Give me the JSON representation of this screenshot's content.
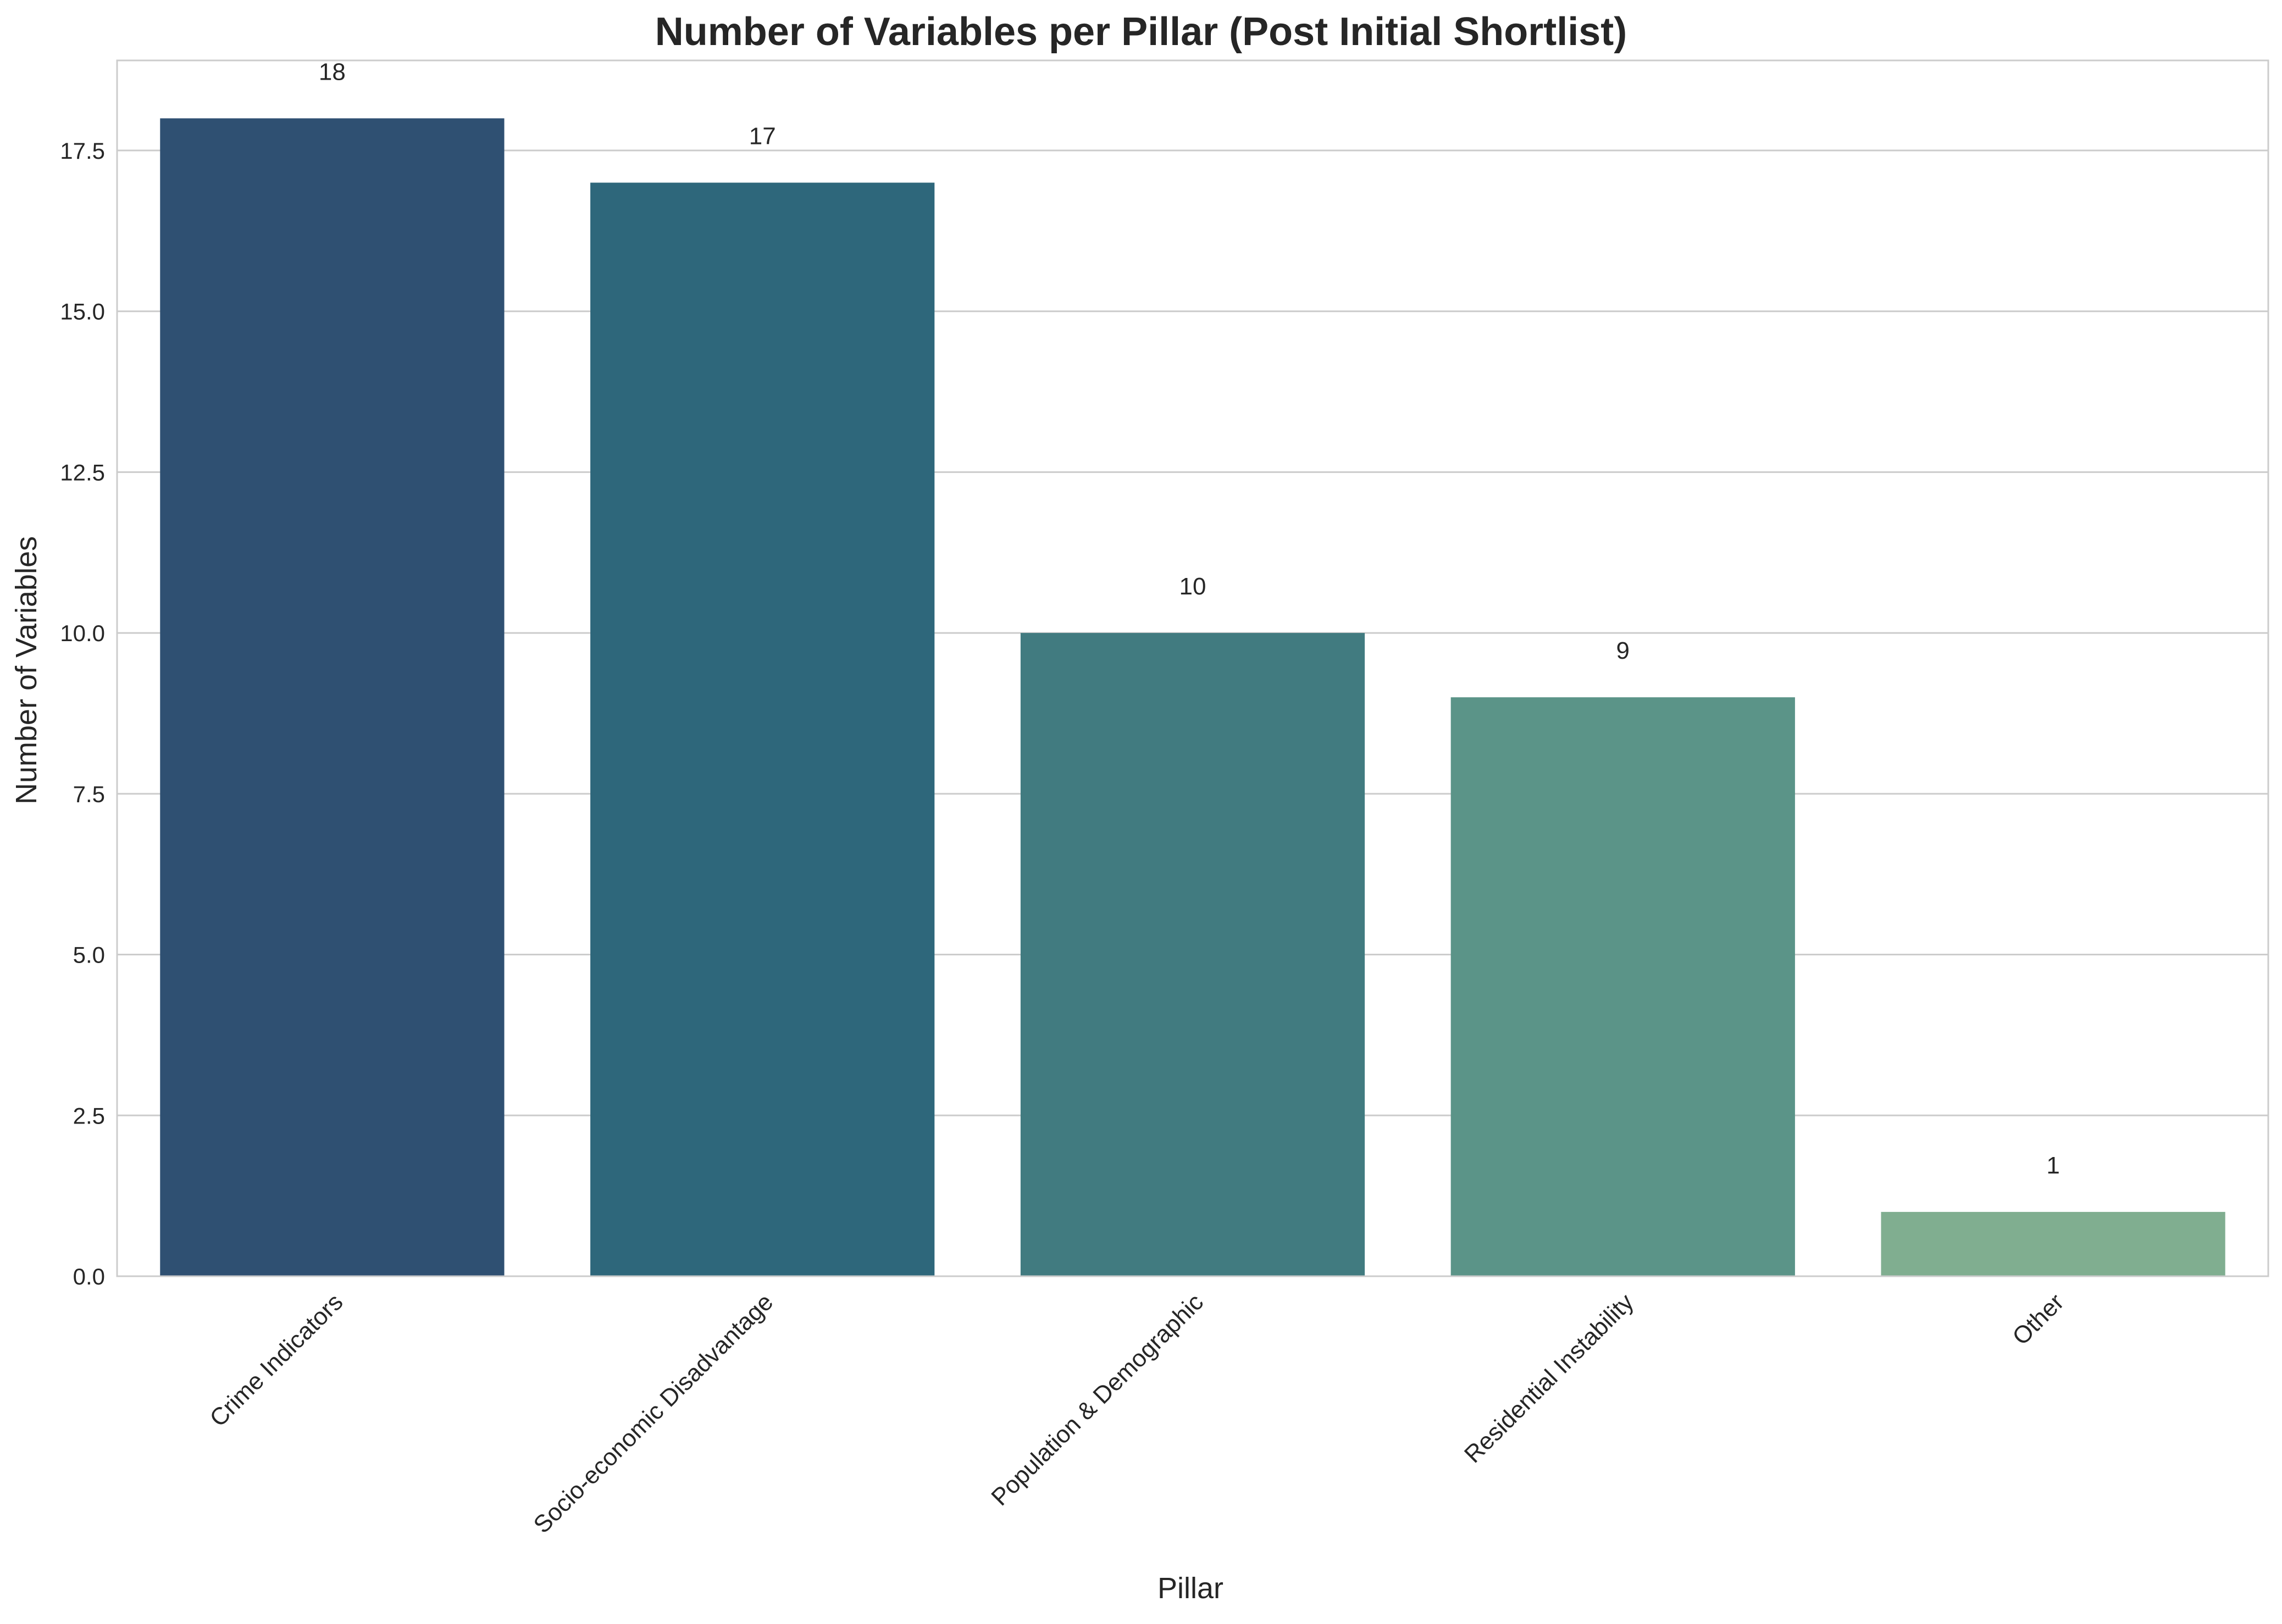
{
  "chart_data": {
    "type": "bar",
    "title": "Number of Variables per Pillar (Post Initial Shortlist)",
    "xlabel": "Pillar",
    "ylabel": "Number of Variables",
    "categories": [
      "Crime Indicators",
      "Socio-economic Disadvantage",
      "Population & Demographic",
      "Residential Instability",
      "Other"
    ],
    "values": [
      18,
      17,
      10,
      9,
      1
    ],
    "data_labels": [
      "18",
      "17",
      "10",
      "9",
      "1"
    ],
    "colors": [
      "#2f5072",
      "#2e677b",
      "#417b80",
      "#5b9488",
      "#80ae90"
    ],
    "ylim": [
      0,
      18.9
    ],
    "yticks": [
      0,
      2.5,
      5,
      7.5,
      10,
      12.5,
      15,
      17.5
    ],
    "ytick_labels": [
      "0.0",
      "2.5",
      "5.0",
      "7.5",
      "10.0",
      "12.5",
      "15.0",
      "17.5"
    ],
    "grid": "horizontal",
    "legend": "none"
  },
  "style": {
    "gridline_color": "#cccccc",
    "spine_color": "#cccccc",
    "text_color": "#262626",
    "background": "#ffffff"
  }
}
